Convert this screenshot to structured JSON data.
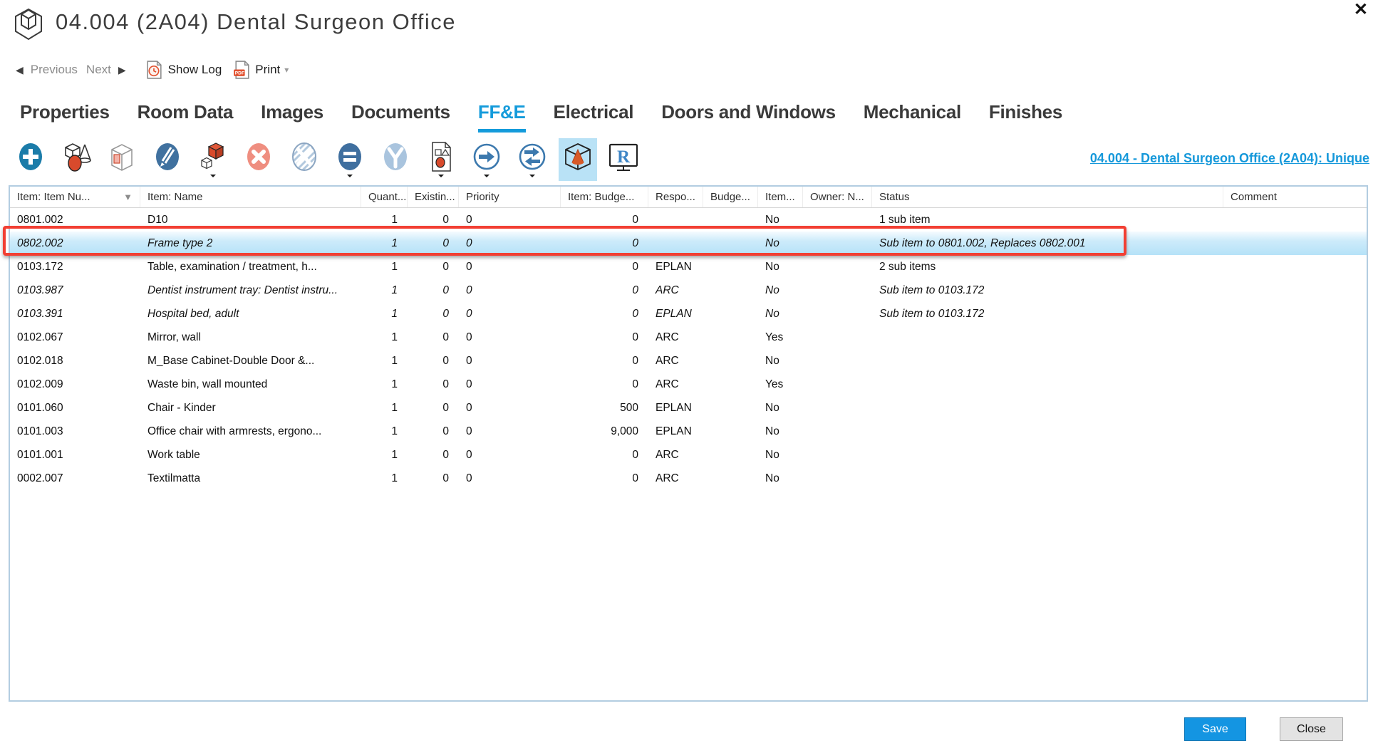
{
  "window": {
    "title": "04.004 (2A04) Dental Surgeon Office",
    "close_glyph": "✕"
  },
  "nav": {
    "previous": "Previous",
    "next": "Next",
    "prev_arrow": "◀",
    "next_arrow": "▶",
    "show_log": "Show Log",
    "print": "Print",
    "print_caret": "▾"
  },
  "tabs": [
    {
      "label": "Properties",
      "active": false
    },
    {
      "label": "Room Data",
      "active": false
    },
    {
      "label": "Images",
      "active": false
    },
    {
      "label": "Documents",
      "active": false
    },
    {
      "label": "FF&E",
      "active": true
    },
    {
      "label": "Electrical",
      "active": false
    },
    {
      "label": "Doors and Windows",
      "active": false
    },
    {
      "label": "Mechanical",
      "active": false
    },
    {
      "label": "Finishes",
      "active": false
    }
  ],
  "toolbar": {
    "icons": [
      {
        "name": "add-item-icon",
        "dropdown": false,
        "active": false
      },
      {
        "name": "item-library-icon",
        "dropdown": false,
        "active": false
      },
      {
        "name": "package-icon",
        "dropdown": false,
        "active": false
      },
      {
        "name": "edit-icon",
        "dropdown": false,
        "active": false
      },
      {
        "name": "copy-item-icon",
        "dropdown": true,
        "active": false
      },
      {
        "name": "delete-icon",
        "dropdown": false,
        "active": false
      },
      {
        "name": "deactivate-item-icon",
        "dropdown": false,
        "active": false
      },
      {
        "name": "properties-icon",
        "dropdown": true,
        "active": false
      },
      {
        "name": "split-item-icon",
        "dropdown": false,
        "active": false
      },
      {
        "name": "item-report-icon",
        "dropdown": true,
        "active": false
      },
      {
        "name": "move-item-icon",
        "dropdown": true,
        "active": false
      },
      {
        "name": "replace-item-icon",
        "dropdown": true,
        "active": false
      },
      {
        "name": "3d-view-icon",
        "dropdown": false,
        "active": true
      },
      {
        "name": "revit-icon",
        "dropdown": false,
        "active": false
      }
    ],
    "context_link": "04.004 - Dental Surgeon Office (2A04): Unique"
  },
  "table": {
    "sort_glyph": "▼",
    "columns": [
      "Item: Item Nu...",
      "Item: Name",
      "Quant...",
      "Existin...",
      "Priority",
      "Item: Budge...",
      "Respo...",
      "Budge...",
      "Item...",
      "Owner: N...",
      "Status",
      "Comment"
    ],
    "rows": [
      {
        "number": "0801.002",
        "name": "D10",
        "quantity": "1",
        "existing": "0",
        "priority": "0",
        "budget": "0",
        "responsible": "",
        "budget2": "",
        "item_flag": "No",
        "owner": "",
        "status": "1 sub item",
        "comment": "",
        "sub_item": false,
        "selected": false
      },
      {
        "number": "0802.002",
        "name": "Frame type 2",
        "quantity": "1",
        "existing": "0",
        "priority": "0",
        "budget": "0",
        "responsible": "",
        "budget2": "",
        "item_flag": "No",
        "owner": "",
        "status": "Sub item to 0801.002, Replaces 0802.001",
        "comment": "",
        "sub_item": true,
        "selected": true
      },
      {
        "number": "0103.172",
        "name": "Table, examination / treatment, h...",
        "quantity": "1",
        "existing": "0",
        "priority": "0",
        "budget": "0",
        "responsible": "EPLAN",
        "budget2": "",
        "item_flag": "No",
        "owner": "",
        "status": "2 sub items",
        "comment": "",
        "sub_item": false,
        "selected": false
      },
      {
        "number": "0103.987",
        "name": "Dentist instrument tray: Dentist instru...",
        "quantity": "1",
        "existing": "0",
        "priority": "0",
        "budget": "0",
        "responsible": "ARC",
        "budget2": "",
        "item_flag": "No",
        "owner": "",
        "status": "Sub item to 0103.172",
        "comment": "",
        "sub_item": true,
        "selected": false
      },
      {
        "number": "0103.391",
        "name": "Hospital bed, adult",
        "quantity": "1",
        "existing": "0",
        "priority": "0",
        "budget": "0",
        "responsible": "EPLAN",
        "budget2": "",
        "item_flag": "No",
        "owner": "",
        "status": "Sub item to 0103.172",
        "comment": "",
        "sub_item": true,
        "selected": false
      },
      {
        "number": "0102.067",
        "name": "Mirror, wall",
        "quantity": "1",
        "existing": "0",
        "priority": "0",
        "budget": "0",
        "responsible": "ARC",
        "budget2": "",
        "item_flag": "Yes",
        "owner": "",
        "status": "",
        "comment": "",
        "sub_item": false,
        "selected": false
      },
      {
        "number": "0102.018",
        "name": "M_Base Cabinet-Double Door &...",
        "quantity": "1",
        "existing": "0",
        "priority": "0",
        "budget": "0",
        "responsible": "ARC",
        "budget2": "",
        "item_flag": "No",
        "owner": "",
        "status": "",
        "comment": "",
        "sub_item": false,
        "selected": false
      },
      {
        "number": "0102.009",
        "name": "Waste bin, wall mounted",
        "quantity": "1",
        "existing": "0",
        "priority": "0",
        "budget": "0",
        "responsible": "ARC",
        "budget2": "",
        "item_flag": "Yes",
        "owner": "",
        "status": "",
        "comment": "",
        "sub_item": false,
        "selected": false
      },
      {
        "number": "0101.060",
        "name": "Chair - Kinder",
        "quantity": "1",
        "existing": "0",
        "priority": "0",
        "budget": "500",
        "responsible": "EPLAN",
        "budget2": "",
        "item_flag": "No",
        "owner": "",
        "status": "",
        "comment": "",
        "sub_item": false,
        "selected": false
      },
      {
        "number": "0101.003",
        "name": "Office chair with armrests, ergono...",
        "quantity": "1",
        "existing": "0",
        "priority": "0",
        "budget": "9,000",
        "responsible": "EPLAN",
        "budget2": "",
        "item_flag": "No",
        "owner": "",
        "status": "",
        "comment": "",
        "sub_item": false,
        "selected": false
      },
      {
        "number": "0101.001",
        "name": "Work table",
        "quantity": "1",
        "existing": "0",
        "priority": "0",
        "budget": "0",
        "responsible": "ARC",
        "budget2": "",
        "item_flag": "No",
        "owner": "",
        "status": "",
        "comment": "",
        "sub_item": false,
        "selected": false
      },
      {
        "number": "0002.007",
        "name": "Textilmatta",
        "quantity": "1",
        "existing": "0",
        "priority": "0",
        "budget": "0",
        "responsible": "ARC",
        "budget2": "",
        "item_flag": "No",
        "owner": "",
        "status": "",
        "comment": "",
        "sub_item": false,
        "selected": false
      }
    ]
  },
  "footer": {
    "save_label": "Save",
    "close_label": "Close"
  },
  "colors": {
    "accent": "#149bdb",
    "link_blue": "#1598da",
    "annotation_red": "#f23f33",
    "selected_row_blue": "#b5e2f8",
    "save_button_blue": "#1495e2",
    "active_icon_bg": "#b9e2f6",
    "toolbar_steel_blue": "#3f6f9f",
    "toolbar_red": "#d84a2c"
  }
}
